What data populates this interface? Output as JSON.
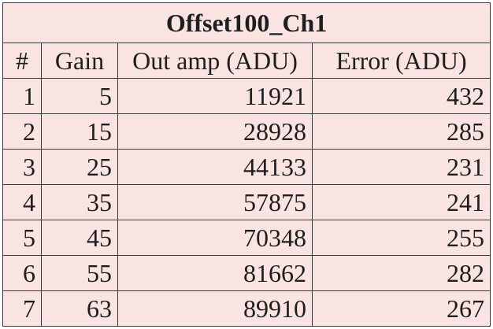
{
  "table": {
    "title": "Offset100_Ch1",
    "headers": [
      "#",
      "Gain",
      "Out amp (ADU)",
      "Error (ADU)"
    ],
    "rows": [
      [
        "1",
        "5",
        "11921",
        "432"
      ],
      [
        "2",
        "15",
        "28928",
        "285"
      ],
      [
        "3",
        "25",
        "44133",
        "231"
      ],
      [
        "4",
        "35",
        "57875",
        "241"
      ],
      [
        "5",
        "45",
        "70348",
        "255"
      ],
      [
        "6",
        "55",
        "81662",
        "282"
      ],
      [
        "7",
        "63",
        "89910",
        "267"
      ]
    ]
  },
  "colors": {
    "cell_background": "#f9e4e1",
    "border": "#3a3a3a",
    "text": "#1e1e1e"
  }
}
